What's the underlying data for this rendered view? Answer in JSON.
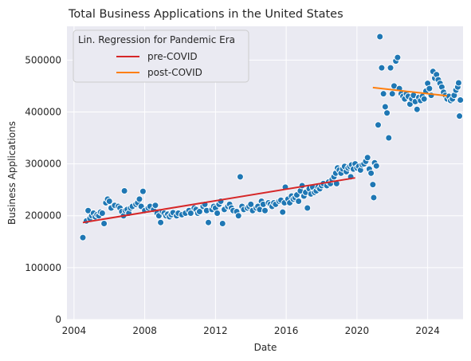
{
  "chart_data": {
    "type": "scatter",
    "title": "Total Business Applications in the United States",
    "xlabel": "Date",
    "ylabel": "Business Applications",
    "xlim": [
      2003.6,
      2026.0
    ],
    "ylim": [
      0,
      565000
    ],
    "x_ticks": [
      2004,
      2008,
      2012,
      2016,
      2020,
      2024
    ],
    "y_ticks": [
      0,
      100000,
      200000,
      300000,
      400000,
      500000
    ],
    "grid": true,
    "background": "#eaeaf2",
    "point_color": "#1f77b4",
    "legend": {
      "title": "Lin. Regression for Pandemic Era",
      "placement": "top-left",
      "entries": [
        {
          "label": "pre-COVID",
          "color": "#d62728"
        },
        {
          "label": "post-COVID",
          "color": "#ff7f0e"
        }
      ]
    },
    "regression_lines": [
      {
        "name": "pre-COVID",
        "color": "#d62728",
        "x": [
          2004.5,
          2019.9
        ],
        "y": [
          187000,
          273000
        ]
      },
      {
        "name": "post-COVID",
        "color": "#ff7f0e",
        "x": [
          2020.9,
          2025.1
        ],
        "y": [
          447000,
          431000
        ]
      }
    ],
    "points": [
      [
        2004.5,
        158000
      ],
      [
        2004.7,
        190000
      ],
      [
        2004.8,
        210000
      ],
      [
        2004.9,
        195000
      ],
      [
        2005.0,
        200000
      ],
      [
        2005.1,
        205000
      ],
      [
        2005.2,
        198000
      ],
      [
        2005.3,
        202000
      ],
      [
        2005.4,
        200000
      ],
      [
        2005.5,
        207000
      ],
      [
        2005.6,
        205000
      ],
      [
        2005.7,
        185000
      ],
      [
        2005.8,
        225000
      ],
      [
        2005.9,
        232000
      ],
      [
        2006.0,
        228000
      ],
      [
        2006.1,
        215000
      ],
      [
        2006.3,
        220000
      ],
      [
        2006.5,
        218000
      ],
      [
        2006.6,
        215000
      ],
      [
        2006.7,
        208000
      ],
      [
        2006.8,
        200000
      ],
      [
        2006.85,
        248000
      ],
      [
        2006.9,
        210000
      ],
      [
        2007.0,
        212000
      ],
      [
        2007.1,
        205000
      ],
      [
        2007.2,
        215000
      ],
      [
        2007.3,
        218000
      ],
      [
        2007.5,
        222000
      ],
      [
        2007.6,
        225000
      ],
      [
        2007.7,
        232000
      ],
      [
        2007.8,
        218000
      ],
      [
        2007.9,
        247000
      ],
      [
        2008.0,
        210000
      ],
      [
        2008.2,
        215000
      ],
      [
        2008.3,
        218000
      ],
      [
        2008.5,
        212000
      ],
      [
        2008.6,
        220000
      ],
      [
        2008.7,
        205000
      ],
      [
        2008.8,
        200000
      ],
      [
        2008.9,
        187000
      ],
      [
        2009.0,
        208000
      ],
      [
        2009.1,
        205000
      ],
      [
        2009.2,
        200000
      ],
      [
        2009.3,
        203000
      ],
      [
        2009.4,
        198000
      ],
      [
        2009.5,
        202000
      ],
      [
        2009.6,
        206000
      ],
      [
        2009.8,
        200000
      ],
      [
        2009.9,
        205000
      ],
      [
        2010.1,
        202000
      ],
      [
        2010.3,
        205000
      ],
      [
        2010.5,
        210000
      ],
      [
        2010.6,
        205000
      ],
      [
        2010.8,
        215000
      ],
      [
        2010.9,
        212000
      ],
      [
        2011.0,
        205000
      ],
      [
        2011.1,
        208000
      ],
      [
        2011.3,
        218000
      ],
      [
        2011.4,
        222000
      ],
      [
        2011.5,
        210000
      ],
      [
        2011.6,
        187000
      ],
      [
        2011.8,
        212000
      ],
      [
        2011.9,
        218000
      ],
      [
        2012.0,
        215000
      ],
      [
        2012.1,
        205000
      ],
      [
        2012.2,
        222000
      ],
      [
        2012.3,
        228000
      ],
      [
        2012.4,
        185000
      ],
      [
        2012.5,
        212000
      ],
      [
        2012.7,
        218000
      ],
      [
        2012.8,
        222000
      ],
      [
        2012.9,
        215000
      ],
      [
        2013.0,
        210000
      ],
      [
        2013.2,
        208000
      ],
      [
        2013.3,
        200000
      ],
      [
        2013.4,
        275000
      ],
      [
        2013.5,
        218000
      ],
      [
        2013.6,
        212000
      ],
      [
        2013.8,
        215000
      ],
      [
        2013.9,
        218000
      ],
      [
        2014.0,
        222000
      ],
      [
        2014.1,
        210000
      ],
      [
        2014.3,
        215000
      ],
      [
        2014.4,
        218000
      ],
      [
        2014.5,
        212000
      ],
      [
        2014.6,
        228000
      ],
      [
        2014.7,
        222000
      ],
      [
        2014.8,
        210000
      ],
      [
        2015.0,
        225000
      ],
      [
        2015.1,
        222000
      ],
      [
        2015.2,
        218000
      ],
      [
        2015.3,
        225000
      ],
      [
        2015.4,
        222000
      ],
      [
        2015.6,
        228000
      ],
      [
        2015.7,
        230000
      ],
      [
        2015.8,
        207000
      ],
      [
        2015.9,
        225000
      ],
      [
        2015.95,
        255000
      ],
      [
        2016.1,
        232000
      ],
      [
        2016.2,
        225000
      ],
      [
        2016.3,
        238000
      ],
      [
        2016.4,
        232000
      ],
      [
        2016.5,
        235000
      ],
      [
        2016.6,
        240000
      ],
      [
        2016.7,
        228000
      ],
      [
        2016.8,
        248000
      ],
      [
        2016.9,
        258000
      ],
      [
        2017.0,
        238000
      ],
      [
        2017.1,
        245000
      ],
      [
        2017.2,
        215000
      ],
      [
        2017.3,
        252000
      ],
      [
        2017.4,
        242000
      ],
      [
        2017.5,
        255000
      ],
      [
        2017.6,
        245000
      ],
      [
        2017.7,
        248000
      ],
      [
        2017.8,
        255000
      ],
      [
        2017.9,
        252000
      ],
      [
        2018.0,
        258000
      ],
      [
        2018.1,
        262000
      ],
      [
        2018.3,
        258000
      ],
      [
        2018.4,
        265000
      ],
      [
        2018.5,
        262000
      ],
      [
        2018.6,
        270000
      ],
      [
        2018.7,
        275000
      ],
      [
        2018.8,
        282000
      ],
      [
        2018.85,
        262000
      ],
      [
        2018.9,
        292000
      ],
      [
        2019.0,
        288000
      ],
      [
        2019.1,
        282000
      ],
      [
        2019.2,
        290000
      ],
      [
        2019.3,
        295000
      ],
      [
        2019.4,
        285000
      ],
      [
        2019.5,
        292000
      ],
      [
        2019.6,
        295000
      ],
      [
        2019.65,
        275000
      ],
      [
        2019.7,
        298000
      ],
      [
        2019.8,
        290000
      ],
      [
        2019.9,
        300000
      ],
      [
        2020.0,
        292000
      ],
      [
        2020.1,
        295000
      ],
      [
        2020.2,
        288000
      ],
      [
        2020.3,
        298000
      ],
      [
        2020.4,
        300000
      ],
      [
        2020.5,
        305000
      ],
      [
        2020.6,
        312000
      ],
      [
        2020.7,
        290000
      ],
      [
        2020.8,
        282000
      ],
      [
        2020.9,
        260000
      ],
      [
        2020.95,
        235000
      ],
      [
        2021.0,
        302000
      ],
      [
        2021.1,
        296000
      ],
      [
        2021.2,
        375000
      ],
      [
        2021.3,
        545000
      ],
      [
        2021.4,
        485000
      ],
      [
        2021.5,
        435000
      ],
      [
        2021.6,
        410000
      ],
      [
        2021.7,
        398000
      ],
      [
        2021.8,
        350000
      ],
      [
        2021.9,
        485000
      ],
      [
        2022.0,
        435000
      ],
      [
        2022.1,
        450000
      ],
      [
        2022.2,
        498000
      ],
      [
        2022.3,
        505000
      ],
      [
        2022.4,
        445000
      ],
      [
        2022.5,
        435000
      ],
      [
        2022.6,
        430000
      ],
      [
        2022.7,
        425000
      ],
      [
        2022.8,
        435000
      ],
      [
        2022.9,
        430000
      ],
      [
        2023.0,
        415000
      ],
      [
        2023.1,
        425000
      ],
      [
        2023.2,
        432000
      ],
      [
        2023.3,
        420000
      ],
      [
        2023.4,
        405000
      ],
      [
        2023.5,
        428000
      ],
      [
        2023.6,
        422000
      ],
      [
        2023.7,
        430000
      ],
      [
        2023.8,
        425000
      ],
      [
        2023.9,
        440000
      ],
      [
        2024.0,
        455000
      ],
      [
        2024.1,
        445000
      ],
      [
        2024.2,
        432000
      ],
      [
        2024.3,
        478000
      ],
      [
        2024.4,
        465000
      ],
      [
        2024.5,
        472000
      ],
      [
        2024.6,
        462000
      ],
      [
        2024.7,
        455000
      ],
      [
        2024.8,
        448000
      ],
      [
        2024.9,
        438000
      ],
      [
        2025.0,
        432000
      ],
      [
        2025.1,
        425000
      ],
      [
        2025.2,
        430000
      ],
      [
        2025.3,
        422000
      ],
      [
        2025.4,
        425000
      ],
      [
        2025.5,
        432000
      ],
      [
        2025.6,
        442000
      ],
      [
        2025.7,
        448000
      ],
      [
        2025.75,
        456000
      ],
      [
        2025.8,
        392000
      ],
      [
        2025.85,
        423000
      ]
    ]
  }
}
